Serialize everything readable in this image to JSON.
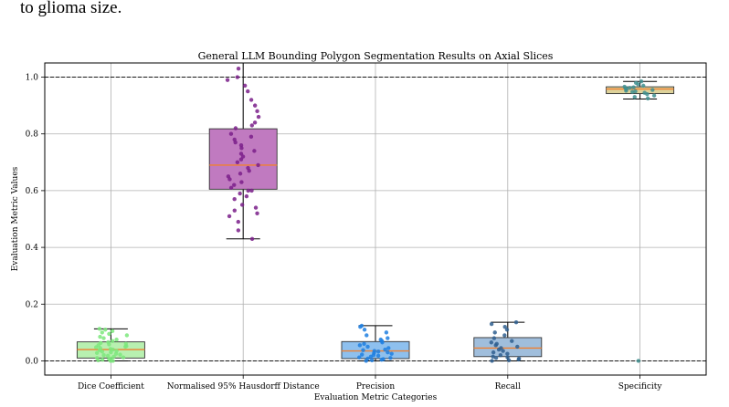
{
  "page_caption": "to glioma size.",
  "chart_data": {
    "type": "box",
    "title": "General LLM Bounding Polygon Segmentation Results on Axial Slices",
    "xlabel": "Evaluation Metric Categories",
    "ylabel": "Evaluation Metric Values",
    "ylim": [
      -0.05,
      1.05
    ],
    "yticks": [
      "0.0",
      "0.2",
      "0.4",
      "0.6",
      "0.8",
      "1.0"
    ],
    "grid": true,
    "reference_lines": [
      0.0,
      1.0
    ],
    "categories": [
      "Dice Coefficient",
      "Normalised 95% Hausdorff Distance",
      "Precision",
      "Recall",
      "Specificity"
    ],
    "boxes": [
      {
        "name": "Dice Coefficient",
        "whisker_low": 0.0,
        "q1": 0.01,
        "median": 0.04,
        "q3": 0.067,
        "whisker_high": 0.113,
        "fill": "#b8f0b0",
        "point_color": "#7de87d",
        "points": [
          0.0,
          0.0,
          0.002,
          0.004,
          0.006,
          0.008,
          0.01,
          0.012,
          0.015,
          0.018,
          0.02,
          0.022,
          0.025,
          0.028,
          0.03,
          0.033,
          0.035,
          0.038,
          0.04,
          0.042,
          0.045,
          0.048,
          0.05,
          0.052,
          0.055,
          0.058,
          0.06,
          0.063,
          0.066,
          0.07,
          0.075,
          0.08,
          0.085,
          0.09,
          0.095,
          0.1,
          0.105,
          0.11,
          0.113
        ]
      },
      {
        "name": "Normalised 95% Hausdorff Distance",
        "whisker_low": 0.43,
        "q1": 0.605,
        "median": 0.69,
        "q3": 0.818,
        "whisker_high": 1.05,
        "fill": "#c07ac0",
        "point_color": "#7a1f8a",
        "points": [
          0.43,
          0.46,
          0.49,
          0.51,
          0.52,
          0.53,
          0.54,
          0.55,
          0.57,
          0.58,
          0.59,
          0.6,
          0.6,
          0.61,
          0.62,
          0.63,
          0.64,
          0.65,
          0.66,
          0.67,
          0.68,
          0.69,
          0.7,
          0.71,
          0.72,
          0.73,
          0.74,
          0.75,
          0.76,
          0.77,
          0.78,
          0.79,
          0.8,
          0.82,
          0.83,
          0.84,
          0.86,
          0.88,
          0.9,
          0.92,
          0.95,
          0.97,
          0.99,
          1.0,
          1.03
        ]
      },
      {
        "name": "Precision",
        "whisker_low": 0.0,
        "q1": 0.008,
        "median": 0.035,
        "q3": 0.068,
        "whisker_high": 0.124,
        "fill": "#8ec0ee",
        "point_color": "#1f7fe0",
        "points": [
          0.0,
          0.002,
          0.004,
          0.006,
          0.008,
          0.01,
          0.012,
          0.015,
          0.018,
          0.02,
          0.022,
          0.025,
          0.028,
          0.03,
          0.033,
          0.035,
          0.038,
          0.04,
          0.045,
          0.05,
          0.055,
          0.06,
          0.065,
          0.07,
          0.075,
          0.08,
          0.09,
          0.1,
          0.11,
          0.12,
          0.124
        ]
      },
      {
        "name": "Recall",
        "whisker_low": 0.0,
        "q1": 0.015,
        "median": 0.045,
        "q3": 0.082,
        "whisker_high": 0.136,
        "fill": "#a0bedc",
        "point_color": "#2f5f8f",
        "points": [
          0.0,
          0.002,
          0.005,
          0.008,
          0.01,
          0.012,
          0.015,
          0.02,
          0.025,
          0.03,
          0.035,
          0.04,
          0.045,
          0.05,
          0.055,
          0.06,
          0.065,
          0.07,
          0.08,
          0.09,
          0.1,
          0.11,
          0.12,
          0.13,
          0.136
        ]
      },
      {
        "name": "Specificity",
        "whisker_low": 0.923,
        "q1": 0.942,
        "median": 0.958,
        "q3": 0.966,
        "whisker_high": 0.985,
        "fill": "#ddd29a",
        "point_color": "#3f8f8f",
        "points": [
          0.0,
          0.925,
          0.93,
          0.935,
          0.94,
          0.945,
          0.948,
          0.95,
          0.952,
          0.955,
          0.957,
          0.96,
          0.962,
          0.964,
          0.966,
          0.97,
          0.975,
          0.98,
          0.985
        ]
      }
    ]
  }
}
